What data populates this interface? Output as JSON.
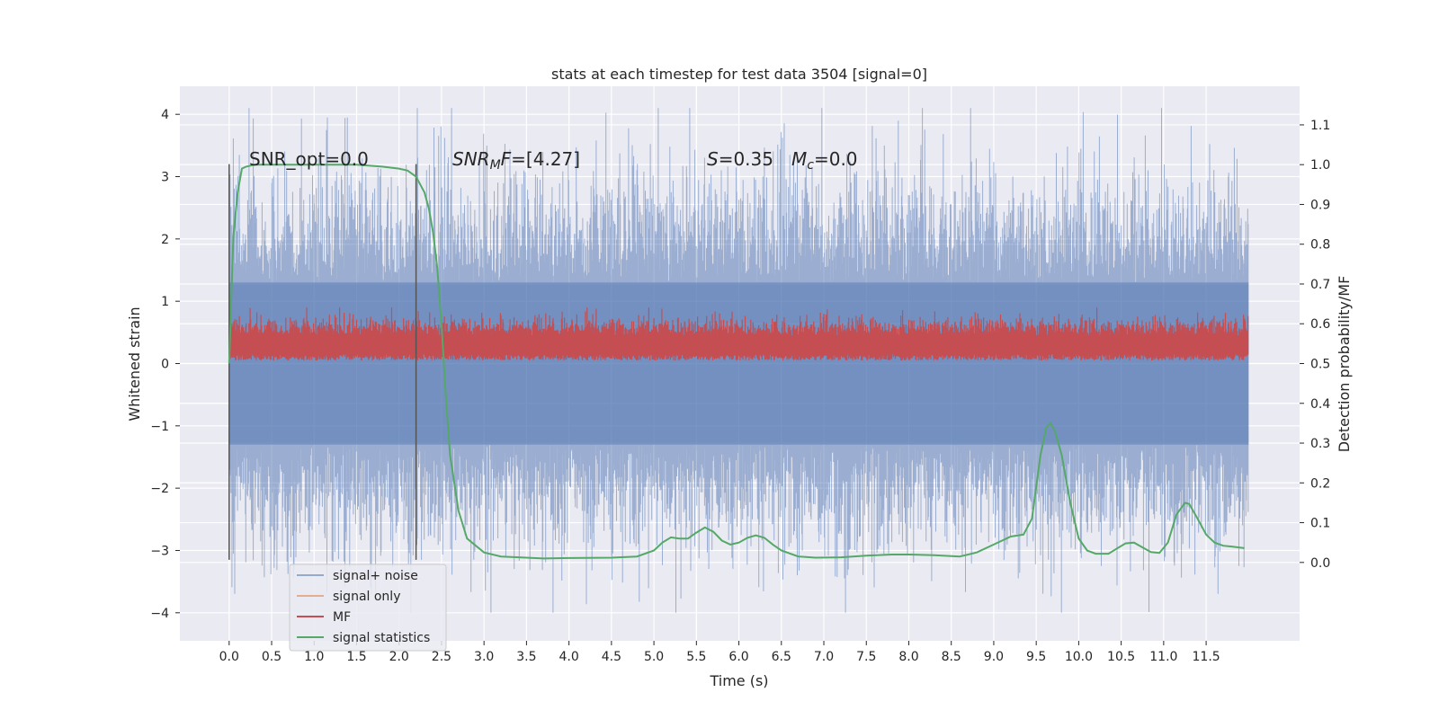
{
  "chart_data": {
    "type": "line",
    "title": "stats at each timestep for test data 3504 [signal=0]",
    "xlabel": "Time (s)",
    "ylabel": "Whitened strain",
    "y2label": "Detection probability/MF",
    "xlim": [
      -0.58,
      12.6
    ],
    "ylim": [
      -4.45,
      4.45
    ],
    "y2lim": [
      -0.197,
      1.197
    ],
    "xticks": [
      "0.0",
      "0.5",
      "1.0",
      "1.5",
      "2.0",
      "2.5",
      "3.0",
      "3.5",
      "4.0",
      "4.5",
      "5.0",
      "5.5",
      "6.0",
      "6.5",
      "7.0",
      "7.5",
      "8.0",
      "8.5",
      "9.0",
      "9.5",
      "10.0",
      "10.5",
      "11.0",
      "11.5"
    ],
    "yticks": [
      "4",
      "3",
      "2",
      "1",
      "0",
      "−1",
      "−2",
      "−3",
      "−4"
    ],
    "y2ticks": [
      "1.1",
      "1.0",
      "0.9",
      "0.8",
      "0.7",
      "0.6",
      "0.5",
      "0.4",
      "0.3",
      "0.2",
      "0.1",
      "0.0"
    ],
    "grid": true,
    "legend_position": "lower-left",
    "annotations": {
      "snr_opt": "SNR_opt=0.0",
      "snr_mf_sym": "SNR",
      "snr_mf_sub": "M",
      "snr_mf_mid": "F",
      "snr_mf_val": "=[4.27]",
      "s_sym": "S",
      "s_val": "=0.35",
      "mc_sym": "M",
      "mc_sub": "c",
      "mc_val": "=0.0"
    },
    "vlines": [
      0.0,
      2.2
    ],
    "vline_range": [
      -3.15,
      3.2
    ],
    "series": [
      {
        "name": "signal+ noise",
        "axis": "left",
        "color": "#4c72b0",
        "style": "noise-band",
        "x_range": [
          0.0,
          12.0
        ],
        "envelope_core": [
          -2.0,
          2.0
        ],
        "envelope_peak": [
          -4.0,
          4.1
        ]
      },
      {
        "name": "signal only",
        "axis": "left",
        "color": "#dd8452",
        "values": []
      },
      {
        "name": "MF",
        "axis": "left",
        "color": "#c44e52",
        "style": "noise-band",
        "x_range": [
          0.0,
          12.0
        ],
        "band": [
          0.05,
          0.9
        ]
      },
      {
        "name": "signal statistics",
        "axis": "right",
        "color": "#55a868",
        "x": [
          0.0,
          0.05,
          0.1,
          0.15,
          0.2,
          0.3,
          0.5,
          1.0,
          1.5,
          1.8,
          2.0,
          2.1,
          2.2,
          2.3,
          2.35,
          2.4,
          2.45,
          2.5,
          2.55,
          2.6,
          2.7,
          2.8,
          3.0,
          3.2,
          3.5,
          3.7,
          4.0,
          4.5,
          4.8,
          5.0,
          5.1,
          5.2,
          5.3,
          5.4,
          5.5,
          5.6,
          5.7,
          5.8,
          5.9,
          6.0,
          6.1,
          6.2,
          6.3,
          6.4,
          6.5,
          6.7,
          6.9,
          7.2,
          7.5,
          7.8,
          8.0,
          8.3,
          8.6,
          8.8,
          9.0,
          9.2,
          9.35,
          9.45,
          9.55,
          9.62,
          9.67,
          9.72,
          9.8,
          9.9,
          10.0,
          10.1,
          10.2,
          10.35,
          10.45,
          10.55,
          10.65,
          10.75,
          10.85,
          10.95,
          11.05,
          11.15,
          11.25,
          11.3,
          11.4,
          11.5,
          11.6,
          11.7,
          11.8,
          11.95
        ],
        "y": [
          0.5,
          0.82,
          0.93,
          0.99,
          0.995,
          1.0,
          1.0,
          1.0,
          1.0,
          0.995,
          0.99,
          0.985,
          0.97,
          0.93,
          0.89,
          0.83,
          0.74,
          0.6,
          0.42,
          0.27,
          0.13,
          0.06,
          0.025,
          0.015,
          0.012,
          0.01,
          0.011,
          0.012,
          0.015,
          0.03,
          0.05,
          0.063,
          0.06,
          0.06,
          0.075,
          0.088,
          0.077,
          0.055,
          0.045,
          0.05,
          0.062,
          0.068,
          0.062,
          0.045,
          0.03,
          0.015,
          0.012,
          0.013,
          0.017,
          0.02,
          0.02,
          0.018,
          0.015,
          0.025,
          0.045,
          0.065,
          0.07,
          0.11,
          0.27,
          0.34,
          0.35,
          0.33,
          0.27,
          0.15,
          0.06,
          0.03,
          0.022,
          0.022,
          0.035,
          0.048,
          0.05,
          0.038,
          0.026,
          0.024,
          0.05,
          0.12,
          0.15,
          0.147,
          0.11,
          0.07,
          0.05,
          0.042,
          0.04,
          0.036
        ]
      }
    ]
  }
}
